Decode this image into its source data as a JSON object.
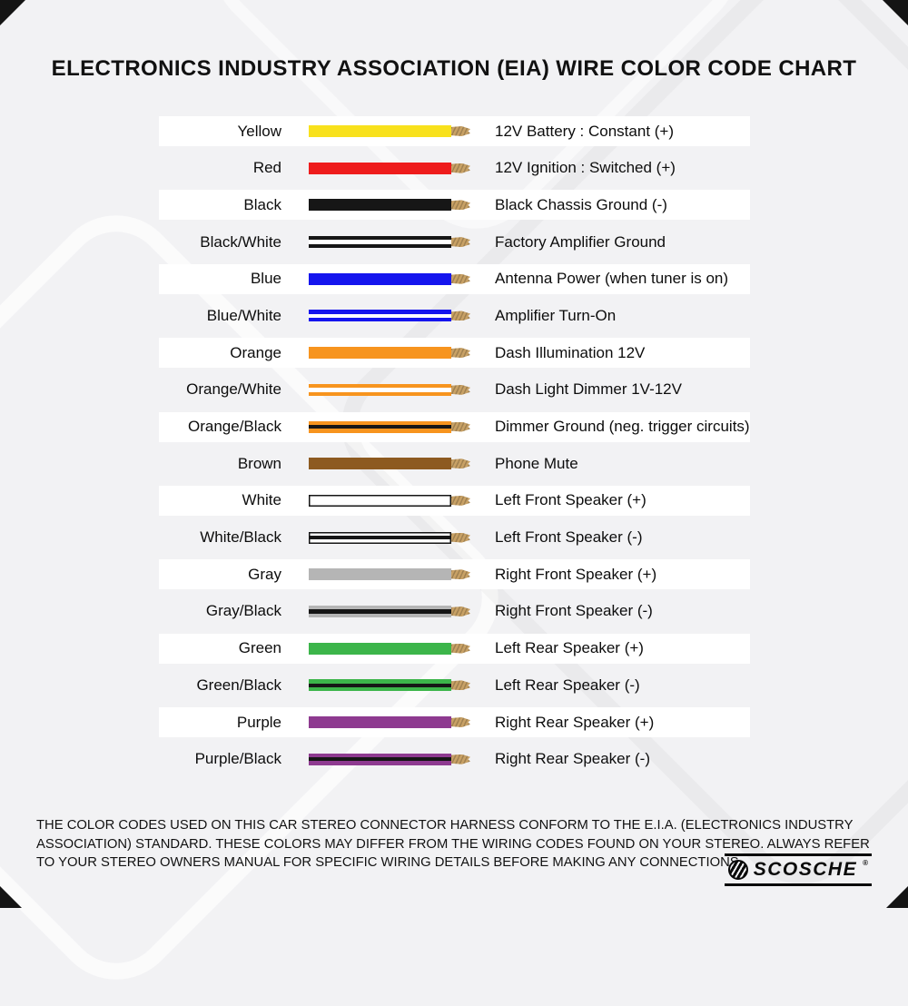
{
  "title": "ELECTRONICS INDUSTRY ASSOCIATION (EIA) WIRE COLOR CODE CHART",
  "colors": {
    "copper_tip": "#c8a165",
    "page_background": "#f2f2f4",
    "band_background": "#ffffff"
  },
  "rows": [
    {
      "label": "Yellow",
      "function": "12V Battery : Constant (+)",
      "wire_base": "#f8e11c",
      "wire_stripe": "",
      "outlined": false
    },
    {
      "label": "Red",
      "function": "12V Ignition : Switched (+)",
      "wire_base": "#ee1c1c",
      "wire_stripe": "",
      "outlined": false
    },
    {
      "label": "Black",
      "function": "Black Chassis Ground (-)",
      "wire_base": "#161616",
      "wire_stripe": "",
      "outlined": false
    },
    {
      "label": "Black/White",
      "function": "Factory Amplifier Ground",
      "wire_base": "#161616",
      "wire_stripe": "#ffffff",
      "outlined": false
    },
    {
      "label": "Blue",
      "function": "Antenna Power (when tuner is on)",
      "wire_base": "#1515ee",
      "wire_stripe": "",
      "outlined": false
    },
    {
      "label": "Blue/White",
      "function": "Amplifier Turn-On",
      "wire_base": "#1515ee",
      "wire_stripe": "#ffffff",
      "outlined": false
    },
    {
      "label": "Orange",
      "function": "Dash Illumination 12V",
      "wire_base": "#f7941e",
      "wire_stripe": "",
      "outlined": false
    },
    {
      "label": "Orange/White",
      "function": "Dash Light Dimmer 1V-12V",
      "wire_base": "#f7941e",
      "wire_stripe": "#ffffff",
      "outlined": false
    },
    {
      "label": "Orange/Black",
      "function": "Dimmer Ground (neg. trigger circuits)",
      "wire_base": "#f7941e",
      "wire_stripe": "#161616",
      "outlined": false
    },
    {
      "label": "Brown",
      "function": "Phone Mute",
      "wire_base": "#8d5a20",
      "wire_stripe": "",
      "outlined": false
    },
    {
      "label": "White",
      "function": "Left Front Speaker (+)",
      "wire_base": "#ffffff",
      "wire_stripe": "",
      "outlined": true
    },
    {
      "label": "White/Black",
      "function": "Left Front Speaker (-)",
      "wire_base": "#ffffff",
      "wire_stripe": "#161616",
      "outlined": true
    },
    {
      "label": "Gray",
      "function": "Right Front Speaker (+)",
      "wire_base": "#b5b5b5",
      "wire_stripe": "",
      "outlined": false
    },
    {
      "label": "Gray/Black",
      "function": "Right Front Speaker (-)",
      "wire_base": "#b5b5b5",
      "wire_stripe": "#161616",
      "outlined": false
    },
    {
      "label": "Green",
      "function": "Left Rear Speaker (+)",
      "wire_base": "#3cb54a",
      "wire_stripe": "",
      "outlined": false
    },
    {
      "label": "Green/Black",
      "function": "Left Rear Speaker (-)",
      "wire_base": "#3cb54a",
      "wire_stripe": "#161616",
      "outlined": false
    },
    {
      "label": "Purple",
      "function": "Right Rear Speaker (+)",
      "wire_base": "#8e3a90",
      "wire_stripe": "",
      "outlined": false
    },
    {
      "label": "Purple/Black",
      "function": "Right Rear Speaker (-)",
      "wire_base": "#8e3a90",
      "wire_stripe": "#161616",
      "outlined": false
    }
  ],
  "footer": "THE COLOR CODES USED ON THIS CAR STEREO CONNECTOR HARNESS CONFORM TO THE E.I.A. (ELECTRONICS INDUSTRY ASSOCIATION) STANDARD. THESE COLORS MAY DIFFER FROM THE WIRING CODES FOUND ON YOUR STEREO. ALWAYS REFER TO YOUR STEREO OWNERS MANUAL FOR SPECIFIC WIRING DETAILS BEFORE MAKING ANY CONNECTIONS.",
  "brand": {
    "name": "SCOSCHE",
    "reg": "®"
  }
}
